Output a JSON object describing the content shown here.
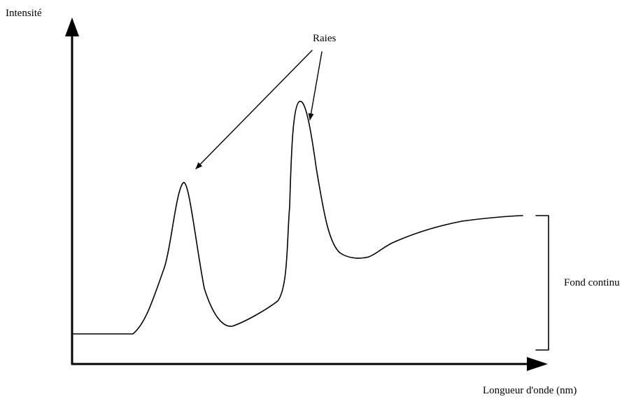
{
  "labels": {
    "y_axis": "Intensité",
    "x_axis": "Longueur d'onde (nm)",
    "peaks": "Raies",
    "background": "Fond continu"
  },
  "colors": {
    "ink": "#000000",
    "background": "#ffffff"
  }
}
